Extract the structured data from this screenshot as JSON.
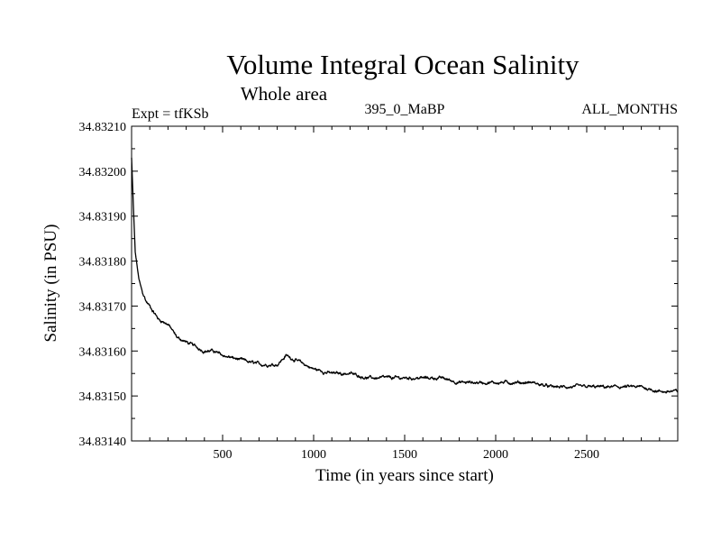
{
  "chart_data": {
    "type": "line",
    "title": "Volume Integral Ocean Salinity",
    "subtitle": "Whole area",
    "annotations": {
      "left": "Expt = tfKSb",
      "center": "395_0_MaBP",
      "right": "ALL_MONTHS"
    },
    "xlabel": "Time (in years since start)",
    "ylabel": "Salinity (in PSU)",
    "xlim": [
      0,
      3000
    ],
    "ylim": [
      34.8314,
      34.8321
    ],
    "x_ticks": [
      500,
      1000,
      1500,
      2000,
      2500
    ],
    "x_tick_labels": [
      "500",
      "1000",
      "1500",
      "2000",
      "2500"
    ],
    "y_ticks": [
      34.8314,
      34.8315,
      34.8316,
      34.8317,
      34.8318,
      34.8319,
      34.832,
      34.8321
    ],
    "y_tick_labels": [
      "34.83140",
      "34.83150",
      "34.83160",
      "34.83170",
      "34.83180",
      "34.83190",
      "34.83200",
      "34.83210"
    ],
    "grid": false,
    "series": [
      {
        "name": "Salinity",
        "color": "#000000",
        "x": [
          0,
          10,
          20,
          40,
          60,
          80,
          100,
          150,
          200,
          250,
          300,
          400,
          450,
          500,
          600,
          700,
          800,
          850,
          900,
          1000,
          1100,
          1200,
          1300,
          1400,
          1500,
          1600,
          1700,
          1800,
          1900,
          2000,
          2100,
          2200,
          2300,
          2400,
          2500,
          2600,
          2700,
          2800,
          2900,
          3000
        ],
        "values": [
          34.83203,
          34.83192,
          34.83182,
          34.83176,
          34.83173,
          34.83171,
          34.8317,
          34.83167,
          34.83166,
          34.83163,
          34.83162,
          34.8316,
          34.8316,
          34.83159,
          34.83158,
          34.83157,
          34.83157,
          34.83159,
          34.83158,
          34.83156,
          34.83155,
          34.83155,
          34.83154,
          34.83154,
          34.83154,
          34.83154,
          34.83154,
          34.83153,
          34.83153,
          34.83153,
          34.83153,
          34.83153,
          34.83152,
          34.83152,
          34.83152,
          34.83152,
          34.83152,
          34.83152,
          34.83151,
          34.83151
        ]
      }
    ]
  }
}
